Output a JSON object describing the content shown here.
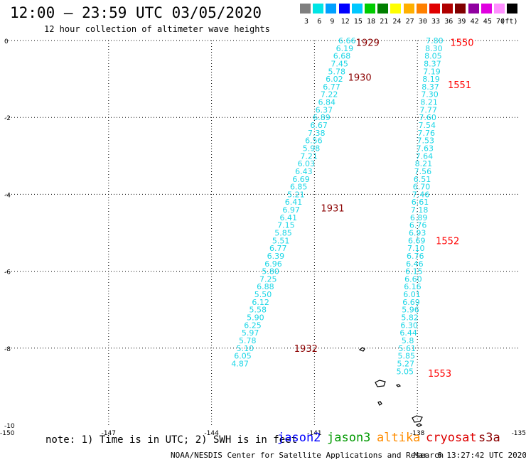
{
  "header": {
    "title": "12:00 – 23:59 UTC 03/05/2020",
    "subtitle": "12 hour collection of altimeter wave heights"
  },
  "legend": {
    "unit": "(ft)",
    "bins": [
      {
        "label": "3",
        "color": "#7f7f7f"
      },
      {
        "label": "6",
        "color": "#00e5e5"
      },
      {
        "label": "9",
        "color": "#00a0ff"
      },
      {
        "label": "12",
        "color": "#0000ff"
      },
      {
        "label": "15",
        "color": "#00c8ff"
      },
      {
        "label": "18",
        "color": "#00cc00"
      },
      {
        "label": "21",
        "color": "#007f00"
      },
      {
        "label": "24",
        "color": "#ffff00"
      },
      {
        "label": "27",
        "color": "#ffb000"
      },
      {
        "label": "30",
        "color": "#ff8000"
      },
      {
        "label": "33",
        "color": "#e00000"
      },
      {
        "label": "36",
        "color": "#b00000"
      },
      {
        "label": "39",
        "color": "#800000"
      },
      {
        "label": "42",
        "color": "#9000a0"
      },
      {
        "label": "45",
        "color": "#e000e0"
      },
      {
        "label": "70",
        "color": "#ff90ff"
      },
      {
        "label": "",
        "color": "#000000"
      }
    ]
  },
  "axes": {
    "y_ticks": [
      "0",
      "-2",
      "-4",
      "-6",
      "-8",
      "-10"
    ],
    "x_ticks": [
      "-150",
      "-147",
      "-144",
      "-141",
      "-138",
      "-135"
    ],
    "lon_range": [
      -150,
      -135
    ],
    "lat_range": [
      -10,
      0
    ]
  },
  "tracks": [
    {
      "name": "west-track",
      "points": [
        {
          "lat": 0.0,
          "lon": -140.05,
          "swh": "6.66"
        },
        {
          "lat": -0.2,
          "lon": -140.12,
          "swh": "6.19"
        },
        {
          "lat": -0.4,
          "lon": -140.2,
          "swh": "6.68"
        },
        {
          "lat": -0.6,
          "lon": -140.27,
          "swh": "7.45"
        },
        {
          "lat": -0.8,
          "lon": -140.35,
          "swh": "5.78"
        },
        {
          "lat": -1.0,
          "lon": -140.42,
          "swh": "6.02"
        },
        {
          "lat": -1.2,
          "lon": -140.5,
          "swh": "6.77"
        },
        {
          "lat": -1.4,
          "lon": -140.57,
          "swh": "7.22"
        },
        {
          "lat": -1.6,
          "lon": -140.64,
          "swh": "6.84"
        },
        {
          "lat": -1.8,
          "lon": -140.72,
          "swh": "6.37"
        },
        {
          "lat": -2.0,
          "lon": -140.79,
          "swh": "6.89"
        },
        {
          "lat": -2.2,
          "lon": -140.87,
          "swh": "6.67"
        },
        {
          "lat": -2.4,
          "lon": -140.94,
          "swh": "7.38"
        },
        {
          "lat": -2.6,
          "lon": -141.02,
          "swh": "6.56"
        },
        {
          "lat": -2.8,
          "lon": -141.09,
          "swh": "5.98"
        },
        {
          "lat": -3.0,
          "lon": -141.16,
          "swh": "7.21"
        },
        {
          "lat": -3.2,
          "lon": -141.24,
          "swh": "6.03"
        },
        {
          "lat": -3.4,
          "lon": -141.31,
          "swh": "6.43"
        },
        {
          "lat": -3.6,
          "lon": -141.39,
          "swh": "6.69"
        },
        {
          "lat": -3.8,
          "lon": -141.46,
          "swh": "6.85"
        },
        {
          "lat": -4.0,
          "lon": -141.54,
          "swh": "5.21"
        },
        {
          "lat": -4.2,
          "lon": -141.61,
          "swh": "6.41"
        },
        {
          "lat": -4.4,
          "lon": -141.68,
          "swh": "6.97"
        },
        {
          "lat": -4.6,
          "lon": -141.76,
          "swh": "6.41"
        },
        {
          "lat": -4.8,
          "lon": -141.83,
          "swh": "7.15"
        },
        {
          "lat": -5.0,
          "lon": -141.91,
          "swh": "5.85"
        },
        {
          "lat": -5.2,
          "lon": -141.98,
          "swh": "5.51"
        },
        {
          "lat": -5.4,
          "lon": -142.06,
          "swh": "6.77"
        },
        {
          "lat": -5.6,
          "lon": -142.13,
          "swh": "6.39"
        },
        {
          "lat": -5.8,
          "lon": -142.2,
          "swh": "6.96"
        },
        {
          "lat": -6.0,
          "lon": -142.28,
          "swh": "5.80"
        },
        {
          "lat": -6.2,
          "lon": -142.35,
          "swh": "7.25"
        },
        {
          "lat": -6.4,
          "lon": -142.43,
          "swh": "6.88"
        },
        {
          "lat": -6.6,
          "lon": -142.5,
          "swh": "5.50"
        },
        {
          "lat": -6.8,
          "lon": -142.57,
          "swh": "6.12"
        },
        {
          "lat": -7.0,
          "lon": -142.65,
          "swh": "5.58"
        },
        {
          "lat": -7.2,
          "lon": -142.72,
          "swh": "5.90"
        },
        {
          "lat": -7.4,
          "lon": -142.8,
          "swh": "6.25"
        },
        {
          "lat": -7.6,
          "lon": -142.87,
          "swh": "5.97"
        },
        {
          "lat": -7.8,
          "lon": -142.95,
          "swh": "5.78"
        },
        {
          "lat": -8.0,
          "lon": -143.02,
          "swh": "5.10"
        },
        {
          "lat": -8.2,
          "lon": -143.09,
          "swh": "6.05"
        },
        {
          "lat": -8.4,
          "lon": -143.17,
          "swh": "4.87"
        }
      ]
    },
    {
      "name": "east-track",
      "points": [
        {
          "lat": 0.0,
          "lon": -137.5,
          "swh": "7.80"
        },
        {
          "lat": -0.2,
          "lon": -137.52,
          "swh": "8.30"
        },
        {
          "lat": -0.4,
          "lon": -137.54,
          "swh": "8.05"
        },
        {
          "lat": -0.6,
          "lon": -137.56,
          "swh": "8.37"
        },
        {
          "lat": -0.8,
          "lon": -137.58,
          "swh": "7.19"
        },
        {
          "lat": -1.0,
          "lon": -137.6,
          "swh": "8.19"
        },
        {
          "lat": -1.2,
          "lon": -137.62,
          "swh": "8.37"
        },
        {
          "lat": -1.4,
          "lon": -137.64,
          "swh": "7.30"
        },
        {
          "lat": -1.6,
          "lon": -137.66,
          "swh": "8.21"
        },
        {
          "lat": -1.8,
          "lon": -137.68,
          "swh": "7.77"
        },
        {
          "lat": -2.0,
          "lon": -137.7,
          "swh": "7.60"
        },
        {
          "lat": -2.2,
          "lon": -137.72,
          "swh": "7.54"
        },
        {
          "lat": -2.4,
          "lon": -137.74,
          "swh": "7.76"
        },
        {
          "lat": -2.6,
          "lon": -137.76,
          "swh": "7.53"
        },
        {
          "lat": -2.8,
          "lon": -137.78,
          "swh": "7.63"
        },
        {
          "lat": -3.0,
          "lon": -137.8,
          "swh": "7.64"
        },
        {
          "lat": -3.2,
          "lon": -137.82,
          "swh": "8.21"
        },
        {
          "lat": -3.4,
          "lon": -137.84,
          "swh": "7.56"
        },
        {
          "lat": -3.6,
          "lon": -137.86,
          "swh": "6.51"
        },
        {
          "lat": -3.8,
          "lon": -137.88,
          "swh": "6.70"
        },
        {
          "lat": -4.0,
          "lon": -137.9,
          "swh": "7.46"
        },
        {
          "lat": -4.2,
          "lon": -137.92,
          "swh": "6.61"
        },
        {
          "lat": -4.4,
          "lon": -137.94,
          "swh": "7.18"
        },
        {
          "lat": -4.6,
          "lon": -137.96,
          "swh": "6.89"
        },
        {
          "lat": -4.8,
          "lon": -137.98,
          "swh": "6.76"
        },
        {
          "lat": -5.0,
          "lon": -138.0,
          "swh": "6.93"
        },
        {
          "lat": -5.2,
          "lon": -138.02,
          "swh": "6.69"
        },
        {
          "lat": -5.4,
          "lon": -138.04,
          "swh": "7.10"
        },
        {
          "lat": -5.6,
          "lon": -138.06,
          "swh": "6.76"
        },
        {
          "lat": -5.8,
          "lon": -138.08,
          "swh": "6.46"
        },
        {
          "lat": -6.0,
          "lon": -138.1,
          "swh": "6.15"
        },
        {
          "lat": -6.2,
          "lon": -138.12,
          "swh": "6.60"
        },
        {
          "lat": -6.4,
          "lon": -138.14,
          "swh": "6.16"
        },
        {
          "lat": -6.6,
          "lon": -138.16,
          "swh": "6.01"
        },
        {
          "lat": -6.8,
          "lon": -138.18,
          "swh": "6.69"
        },
        {
          "lat": -7.0,
          "lon": -138.2,
          "swh": "5.96"
        },
        {
          "lat": -7.2,
          "lon": -138.22,
          "swh": "5.82"
        },
        {
          "lat": -7.4,
          "lon": -138.24,
          "swh": "6.30"
        },
        {
          "lat": -7.6,
          "lon": -138.26,
          "swh": "6.44"
        },
        {
          "lat": -7.8,
          "lon": -138.28,
          "swh": "5.8"
        },
        {
          "lat": -8.0,
          "lon": -138.3,
          "swh": "5.61"
        },
        {
          "lat": -8.2,
          "lon": -138.32,
          "swh": "5.85"
        },
        {
          "lat": -8.4,
          "lon": -138.34,
          "swh": "5.27"
        },
        {
          "lat": -8.6,
          "lon": -138.36,
          "swh": "5.05"
        }
      ]
    }
  ],
  "time_labels": [
    {
      "text": "1929",
      "lat": -0.05,
      "lon": -139.45,
      "color": "#8b0000"
    },
    {
      "text": "1930",
      "lat": -0.95,
      "lon": -139.68,
      "color": "#8b0000"
    },
    {
      "text": "1931",
      "lat": -4.35,
      "lon": -140.47,
      "color": "#8b0000"
    },
    {
      "text": "1932",
      "lat": -8.0,
      "lon": -141.25,
      "color": "#8b0000"
    },
    {
      "text": "1550",
      "lat": -0.05,
      "lon": -136.7,
      "color": "#ff0000"
    },
    {
      "text": "1551",
      "lat": -1.15,
      "lon": -136.77,
      "color": "#ff0000"
    },
    {
      "text": "1552",
      "lat": -5.2,
      "lon": -137.12,
      "color": "#ff0000"
    },
    {
      "text": "1553",
      "lat": -8.65,
      "lon": -137.35,
      "color": "#ff0000"
    }
  ],
  "footer": {
    "note": "note: 1) Time is in UTC; 2) SWH is in feet",
    "satellites": [
      {
        "name": "jason2",
        "color": "#0000ff"
      },
      {
        "name": "jason3",
        "color": "#009900"
      },
      {
        "name": "altika",
        "color": "#ff8c00"
      },
      {
        "name": "cryosat",
        "color": "#dd0000"
      },
      {
        "name": "s3a",
        "color": "#8b0000"
      }
    ],
    "credit": "NOAA/NESDIS Center for Satellite Applications and Research",
    "timestamp": "Mar  6 13:27:42 UTC 2020"
  }
}
